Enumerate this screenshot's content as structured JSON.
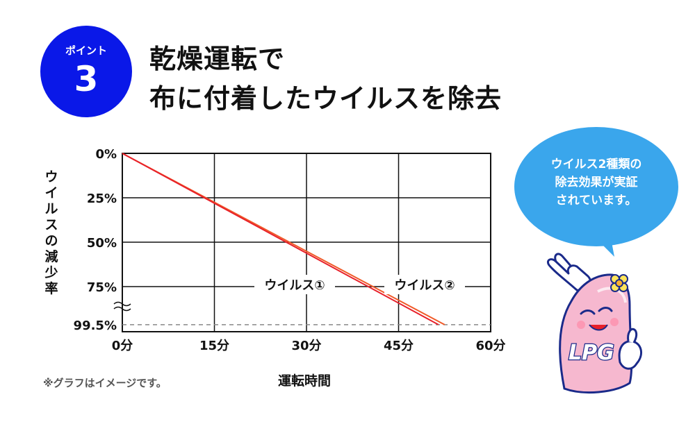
{
  "badge": {
    "label": "ポイント",
    "number": "3",
    "color": "#0a18e8"
  },
  "title": {
    "line1": "乾燥運転で",
    "line2": "布に付着したウイルスを除去"
  },
  "chart_data": {
    "type": "line",
    "xlabel": "運転時間",
    "ylabel": "ウイルスの減少率",
    "x_tick_labels": [
      "0分",
      "15分",
      "30分",
      "45分",
      "60分"
    ],
    "x_ticks": [
      0,
      15,
      30,
      45,
      60
    ],
    "y_tick_labels": [
      "0%",
      "25%",
      "50%",
      "75%",
      "99.5%"
    ],
    "y_ticks": [
      0,
      25,
      50,
      75,
      99.5
    ],
    "xlim": [
      0,
      60
    ],
    "ylim": [
      0,
      100
    ],
    "y_inverted": true,
    "grid": true,
    "reference_line": {
      "y": 99.5,
      "style": "dashed"
    },
    "series": [
      {
        "name": "ウイルス①",
        "x": [
          0,
          52.5
        ],
        "y": [
          0,
          99.5
        ],
        "color": "#f05a28"
      },
      {
        "name": "ウイルス②",
        "x": [
          0,
          51.5
        ],
        "y": [
          0,
          99.5
        ],
        "color": "#e8202a"
      }
    ]
  },
  "footnote": "※グラフはイメージです。",
  "bubble": {
    "line1": "ウイルス2種類の",
    "line2": "除去効果が実証",
    "line3": "されています。",
    "color": "#3aa6ec"
  },
  "mascot": {
    "logo_text": "LPG",
    "body_color": "#f6b8cf",
    "outline_color": "#1a2a8a"
  }
}
